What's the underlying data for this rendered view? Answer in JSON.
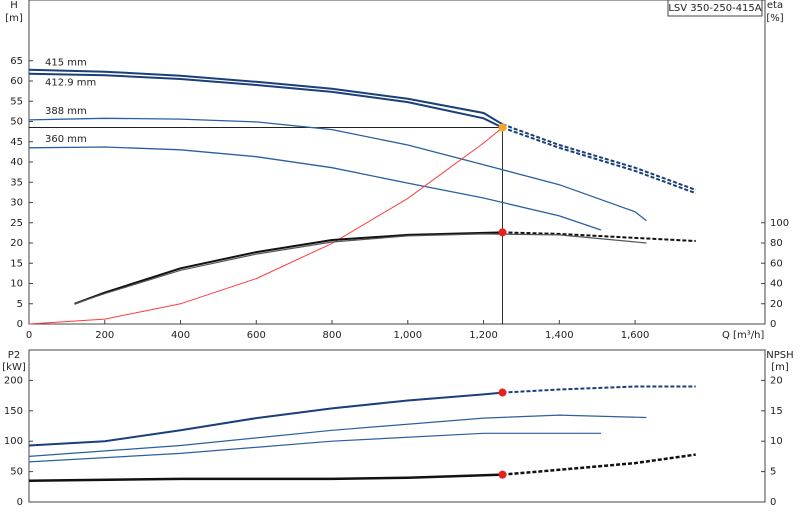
{
  "chart_data": [
    {
      "type": "line",
      "title": "LSV 350-250-415A",
      "ylabel": "H",
      "yunit": "[m]",
      "y2label": "eta",
      "y2unit": "[%]",
      "xlabel": "Q [m³/h]",
      "xlim": [
        0,
        1943
      ],
      "ylim": [
        0,
        80
      ],
      "y2lim": [
        0,
        320
      ],
      "xticks": [
        0,
        200,
        400,
        600,
        800,
        {
          "value": 1000,
          "label": "1,000"
        },
        {
          "value": 1200,
          "label": "1,200"
        },
        {
          "value": 1400,
          "label": "1,400"
        },
        {
          "value": 1600,
          "label": "1,600"
        }
      ],
      "yticks": [
        0,
        5,
        10,
        15,
        20,
        25,
        30,
        35,
        40,
        45,
        50,
        55,
        60,
        65
      ],
      "y2ticks": [
        0,
        20,
        40,
        60,
        80,
        100
      ],
      "duty_lines": true,
      "series": [
        {
          "name": "415 mm",
          "color": "#1a3f7a",
          "width": 2,
          "dashed_beyond_duty": true,
          "x": [
            0,
            200,
            400,
            600,
            800,
            1000,
            1200,
            1250,
            1400,
            1600,
            1760
          ],
          "values": [
            62.8,
            62.3,
            61.3,
            59.8,
            58.1,
            55.6,
            52.1,
            49.3,
            44.2,
            38.6,
            33.1
          ]
        },
        {
          "name": "412.9 mm",
          "color": "#1a3f7a",
          "width": 2,
          "dashed_beyond_duty": true,
          "x": [
            0,
            200,
            400,
            600,
            800,
            1000,
            1200,
            1250,
            1400,
            1600,
            1760
          ],
          "values": [
            61.8,
            61.4,
            60.5,
            59.0,
            57.3,
            54.8,
            50.8,
            48.5,
            43.5,
            37.8,
            32.3
          ]
        },
        {
          "name": "388 mm",
          "color": "#2a5fa0",
          "width": 1.3,
          "x": [
            0,
            200,
            400,
            600,
            800,
            1000,
            1200,
            1400,
            1600,
            1630
          ],
          "values": [
            50.4,
            50.8,
            50.6,
            49.9,
            48.0,
            44.2,
            39.3,
            34.4,
            27.7,
            25.5
          ]
        },
        {
          "name": "360 mm",
          "color": "#2a5fa0",
          "width": 1.3,
          "x": [
            0,
            200,
            400,
            600,
            800,
            1000,
            1200,
            1400,
            1510
          ],
          "values": [
            43.5,
            43.7,
            43.0,
            41.3,
            38.6,
            34.8,
            31.1,
            26.7,
            23.2
          ]
        },
        {
          "color": "#ff3b3b",
          "width": 1,
          "x": [
            0,
            200,
            400,
            600,
            800,
            1000,
            1200,
            1250
          ],
          "values": [
            0,
            1.2,
            5.0,
            11.2,
            19.9,
            31.0,
            44.7,
            48.5
          ]
        },
        {
          "color": "#111111",
          "width": 2,
          "axis": "y2",
          "dashed_beyond_duty": true,
          "x": [
            120,
            200,
            400,
            600,
            800,
            1000,
            1200,
            1250,
            1400,
            1600,
            1760
          ],
          "values": [
            20,
            31,
            55,
            71,
            83,
            88,
            90,
            90.5,
            89,
            85,
            82
          ]
        },
        {
          "color": "#555555",
          "width": 1.2,
          "axis": "y2",
          "x": [
            120,
            200,
            400,
            600,
            800,
            1000,
            1200,
            1400,
            1630
          ],
          "values": [
            20,
            30,
            53,
            69,
            81,
            87,
            89,
            88,
            80
          ]
        }
      ],
      "markers": [
        {
          "x": 1250,
          "y": 48.5,
          "color": "#f5a623"
        },
        {
          "x": 1250,
          "y": 90.5,
          "color": "#e8201c",
          "axis": "y2"
        }
      ]
    },
    {
      "type": "line",
      "ylabel": "P2",
      "yunit": "[kW]",
      "y2label": "NPSH",
      "y2unit": "[m]",
      "xlim": [
        0,
        1943
      ],
      "ylim": [
        0,
        250
      ],
      "y2lim": [
        0,
        25
      ],
      "yticks": [
        0,
        50,
        100,
        150,
        200
      ],
      "y2ticks": [
        0,
        5,
        10,
        15,
        20
      ],
      "series": [
        {
          "color": "#1a3f7a",
          "width": 2,
          "dashed_beyond_duty": true,
          "x": [
            0,
            200,
            400,
            600,
            800,
            1000,
            1200,
            1250,
            1400,
            1600,
            1760
          ],
          "values": [
            93,
            100,
            118,
            138,
            154,
            167,
            177,
            180,
            185,
            190,
            190
          ]
        },
        {
          "color": "#2a5fa0",
          "width": 1.2,
          "x": [
            0,
            400,
            800,
            1200,
            1400,
            1630
          ],
          "values": [
            75,
            93,
            118,
            138,
            143,
            139
          ]
        },
        {
          "color": "#2a5fa0",
          "width": 1.2,
          "x": [
            0,
            400,
            800,
            1200,
            1510
          ],
          "values": [
            66,
            80,
            100,
            113,
            113
          ]
        },
        {
          "color": "#111111",
          "width": 2.5,
          "axis": "y2",
          "dashed_beyond_duty": true,
          "x": [
            0,
            400,
            800,
            1000,
            1250,
            1400,
            1600,
            1760
          ],
          "values": [
            3.5,
            3.8,
            3.8,
            4.0,
            4.5,
            5.3,
            6.4,
            7.8
          ]
        }
      ],
      "markers": [
        {
          "x": 1250,
          "y": 180,
          "color": "#e8201c"
        },
        {
          "x": 1250,
          "y": 4.5,
          "color": "#e8201c",
          "axis": "y2"
        }
      ]
    }
  ]
}
